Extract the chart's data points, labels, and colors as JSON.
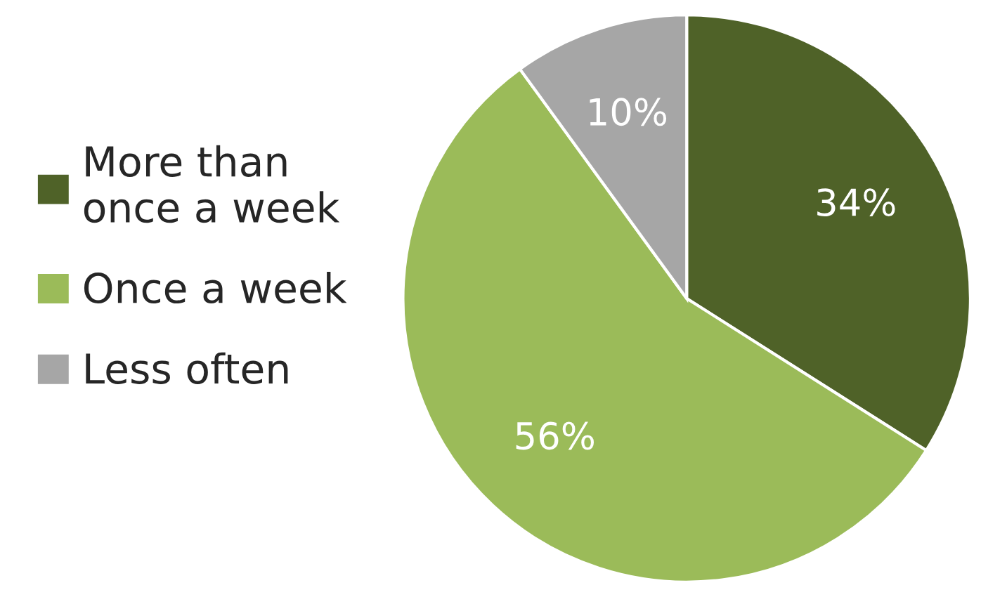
{
  "chart_data": {
    "type": "pie",
    "categories": [
      "More than\nonce a week",
      "Once a week",
      "Less often"
    ],
    "values": [
      34,
      56,
      10
    ],
    "colors": [
      "#4f6228",
      "#9bbb59",
      "#a6a6a6"
    ],
    "value_labels": [
      "34%",
      "56%",
      "10%"
    ],
    "legend": "left"
  }
}
